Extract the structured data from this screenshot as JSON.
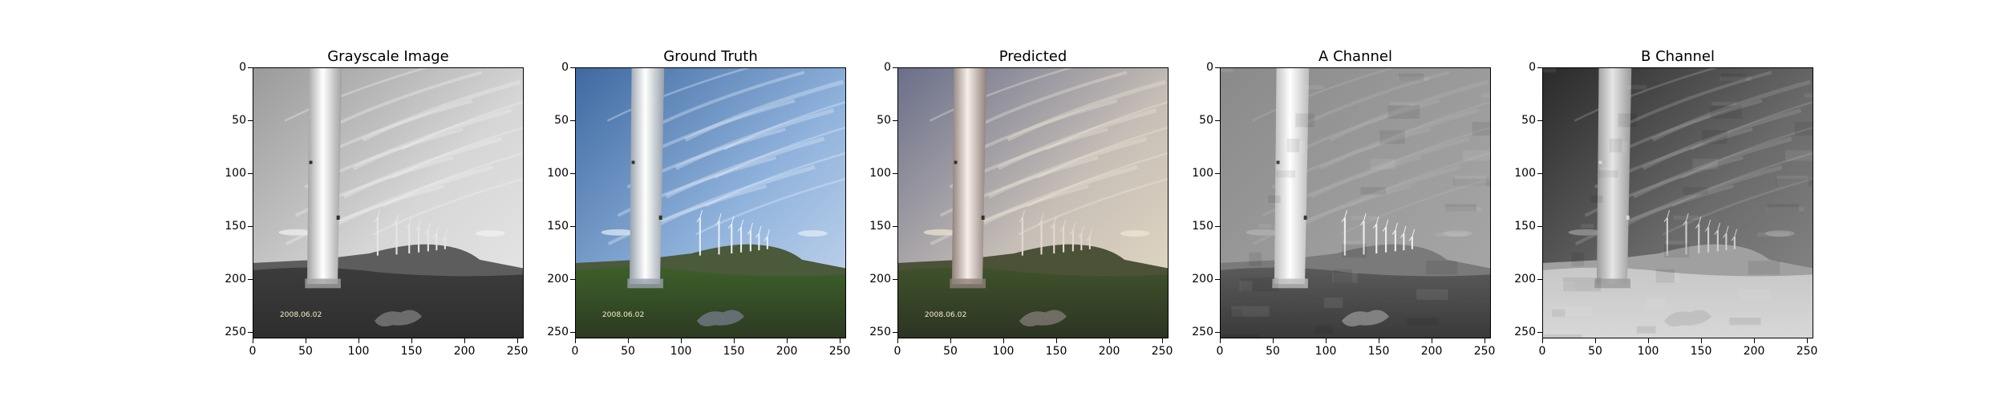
{
  "figure": {
    "panels": [
      {
        "title": "Grayscale Image",
        "kind": "gray",
        "date_stamp": "2008.06.02"
      },
      {
        "title": "Ground Truth",
        "kind": "truth",
        "date_stamp": "2008.06.02"
      },
      {
        "title": "Predicted",
        "kind": "pred",
        "date_stamp": "2008.06.02"
      },
      {
        "title": "A Channel",
        "kind": "achan",
        "date_stamp": ""
      },
      {
        "title": "B Channel",
        "kind": "bchan",
        "date_stamp": ""
      }
    ],
    "x_ticks": [
      "0",
      "50",
      "100",
      "150",
      "200",
      "250"
    ],
    "y_ticks": [
      "0",
      "50",
      "100",
      "150",
      "200",
      "250"
    ]
  }
}
